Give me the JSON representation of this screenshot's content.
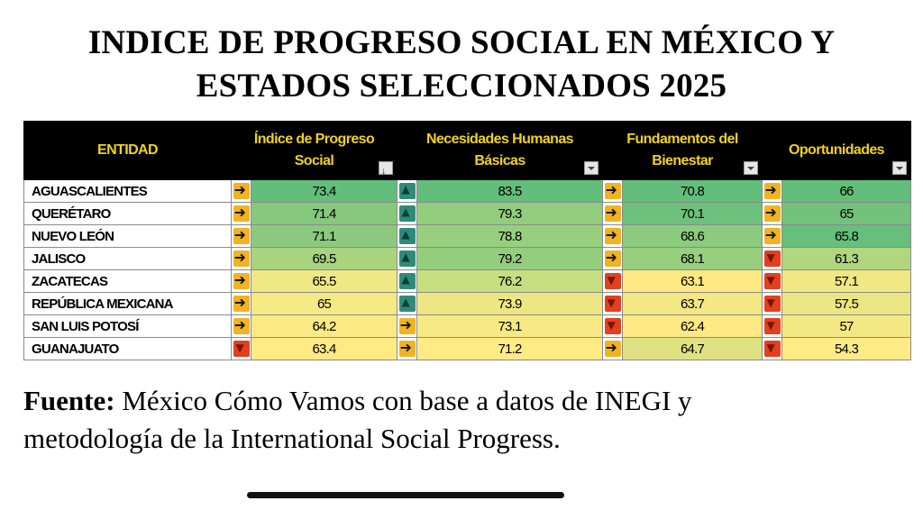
{
  "title": {
    "line1": "INDICE DE PROGRESO SOCIAL EN MÉXICO Y",
    "line2": "ESTADOS SELECCIONADOS 2025"
  },
  "table": {
    "headers": {
      "entidad": "ENTIDAD",
      "ips_l1": "Índice de Progreso",
      "ips_l2": "Social",
      "nhb_l1": "Necesidades Humanas",
      "nhb_l2": "Básicas",
      "fb_l1": "Fundamentos del",
      "fb_l2": "Bienestar",
      "op": "Oportunidades"
    },
    "rows": [
      {
        "name": "AGUASCALIENTES",
        "ips": "73.4",
        "ips_t": "right",
        "ips_c": "#63be7b",
        "nhb": "83.5",
        "nhb_t": "up",
        "nhb_c": "#63be7b",
        "fb": "70.8",
        "fb_t": "right",
        "fb_c": "#63be7b",
        "op": "66",
        "op_t": "right",
        "op_c": "#63be7b"
      },
      {
        "name": "QUERÉTARO",
        "ips": "71.4",
        "ips_t": "right",
        "ips_c": "#86c97d",
        "nhb": "79.3",
        "nhb_t": "up",
        "nhb_c": "#92cd7e",
        "fb": "70.1",
        "fb_t": "right",
        "fb_c": "#6dc17c",
        "op": "65",
        "op_t": "right",
        "op_c": "#72c27c"
      },
      {
        "name": "NUEVO LEÓN",
        "ips": "71.1",
        "ips_t": "right",
        "ips_c": "#8bca7e",
        "nhb": "78.8",
        "nhb_t": "up",
        "nhb_c": "#98cf7f",
        "fb": "68.6",
        "fb_t": "right",
        "fb_c": "#8dcb7e",
        "op": "65.8",
        "op_t": "right",
        "op_c": "#66bf7b"
      },
      {
        "name": "JALISCO",
        "ips": "69.5",
        "ips_t": "right",
        "ips_c": "#a8d37f",
        "nhb": "79.2",
        "nhb_t": "up",
        "nhb_c": "#93ce7e",
        "fb": "68.1",
        "fb_t": "right",
        "fb_c": "#98cf7f",
        "op": "61.3",
        "op_t": "down",
        "op_c": "#b2d680"
      },
      {
        "name": "ZACATECAS",
        "ips": "65.5",
        "ips_t": "right",
        "ips_c": "#f0e884",
        "nhb": "76.2",
        "nhb_t": "up",
        "nhb_c": "#c7de81",
        "fb": "63.1",
        "fb_t": "down",
        "fb_c": "#ffe984",
        "op": "57.1",
        "op_t": "down",
        "op_c": "#f1e784"
      },
      {
        "name": "REPÚBLICA MEXICANA",
        "ips": "65",
        "ips_t": "right",
        "ips_c": "#f5e984",
        "nhb": "73.9",
        "nhb_t": "up",
        "nhb_c": "#eee683",
        "fb": "63.7",
        "fb_t": "down",
        "fb_c": "#f3e883",
        "op": "57.5",
        "op_t": "down",
        "op_c": "#ebe583"
      },
      {
        "name": "SAN LUIS POTOSÍ",
        "ips": "64.2",
        "ips_t": "right",
        "ips_c": "#fbea84",
        "nhb": "73.1",
        "nhb_t": "right",
        "nhb_c": "#f7e984",
        "fb": "62.4",
        "fb_t": "down",
        "fb_c": "#ffe984",
        "op": "57",
        "op_t": "down",
        "op_c": "#f3e884"
      },
      {
        "name": "GUANAJUATO",
        "ips": "63.4",
        "ips_t": "down",
        "ips_c": "#ffea84",
        "nhb": "71.2",
        "nhb_t": "right",
        "nhb_c": "#ffeb84",
        "fb": "64.7",
        "fb_t": "right",
        "fb_c": "#dfe283",
        "op": "54.3",
        "op_t": "down",
        "op_c": "#ffeb84"
      }
    ]
  },
  "source": {
    "label": "Fuente:",
    "text": " México Cómo Vamos con base a datos de INEGI y",
    "line2": "metodología de la International Social Progress."
  }
}
